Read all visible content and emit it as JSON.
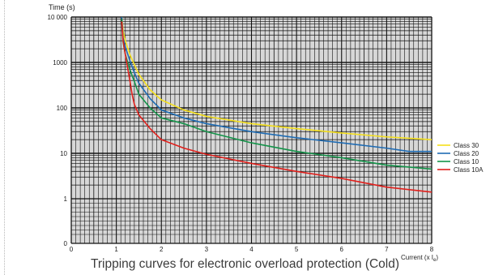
{
  "chart_data": {
    "type": "line",
    "title": "",
    "ylabel": "Time (s)",
    "xlabel": "Current (x I",
    "xlabel_sub": "e",
    "xlabel_close": ")",
    "x_ticks": [
      0,
      1,
      2,
      3,
      4,
      5,
      6,
      7,
      8
    ],
    "x_tick_labels": [
      "0",
      "1",
      "2",
      "3",
      "4",
      "5",
      "6",
      "7",
      "8"
    ],
    "xlim": [
      0,
      8
    ],
    "y_scale": "log",
    "y_ticks": [
      1,
      10,
      100,
      1000,
      10000
    ],
    "y_tick_labels": [
      "1",
      "10",
      "100",
      "1000",
      "10 000"
    ],
    "y_zero_label": "0",
    "grid": true,
    "legend_position": "right",
    "series": [
      {
        "name": "Class 30",
        "color": "#f5e01c",
        "x": [
          1.12,
          1.15,
          1.2,
          1.3,
          1.4,
          1.5,
          1.75,
          2.0,
          2.5,
          3.0,
          4.0,
          5.0,
          6.0,
          7.0,
          8.0
        ],
        "y": [
          10000,
          5000,
          3000,
          1500,
          900,
          550,
          250,
          150,
          90,
          65,
          45,
          35,
          28,
          23,
          20
        ]
      },
      {
        "name": "Class 20",
        "color": "#1f6cb4",
        "x": [
          1.12,
          1.15,
          1.2,
          1.3,
          1.4,
          1.5,
          1.75,
          2.0,
          2.5,
          3.0,
          4.0,
          5.0,
          6.0,
          7.0,
          7.5,
          8.0
        ],
        "y": [
          10000,
          3500,
          2200,
          1100,
          600,
          350,
          160,
          90,
          60,
          45,
          30,
          22,
          17,
          13,
          11,
          11
        ]
      },
      {
        "name": "Class 10",
        "color": "#14944a",
        "x": [
          1.12,
          1.15,
          1.2,
          1.3,
          1.4,
          1.5,
          1.75,
          2.0,
          2.5,
          3.0,
          4.0,
          5.0,
          6.0,
          7.0,
          8.0
        ],
        "y": [
          9000,
          2800,
          1500,
          700,
          380,
          200,
          100,
          60,
          45,
          30,
          17,
          11,
          8,
          5.5,
          4.5
        ]
      },
      {
        "name": "Class 10A",
        "color": "#e0201c",
        "x": [
          1.12,
          1.15,
          1.2,
          1.3,
          1.35,
          1.4,
          1.5,
          1.75,
          2.0,
          2.5,
          3.0,
          4.0,
          5.0,
          6.0,
          7.0,
          8.0
        ],
        "y": [
          8000,
          3000,
          1500,
          400,
          200,
          120,
          70,
          35,
          20,
          13,
          9.5,
          6,
          4,
          2.8,
          1.8,
          1.4
        ]
      }
    ]
  },
  "caption": "Tripping curves for electronic overload protection (Cold)"
}
